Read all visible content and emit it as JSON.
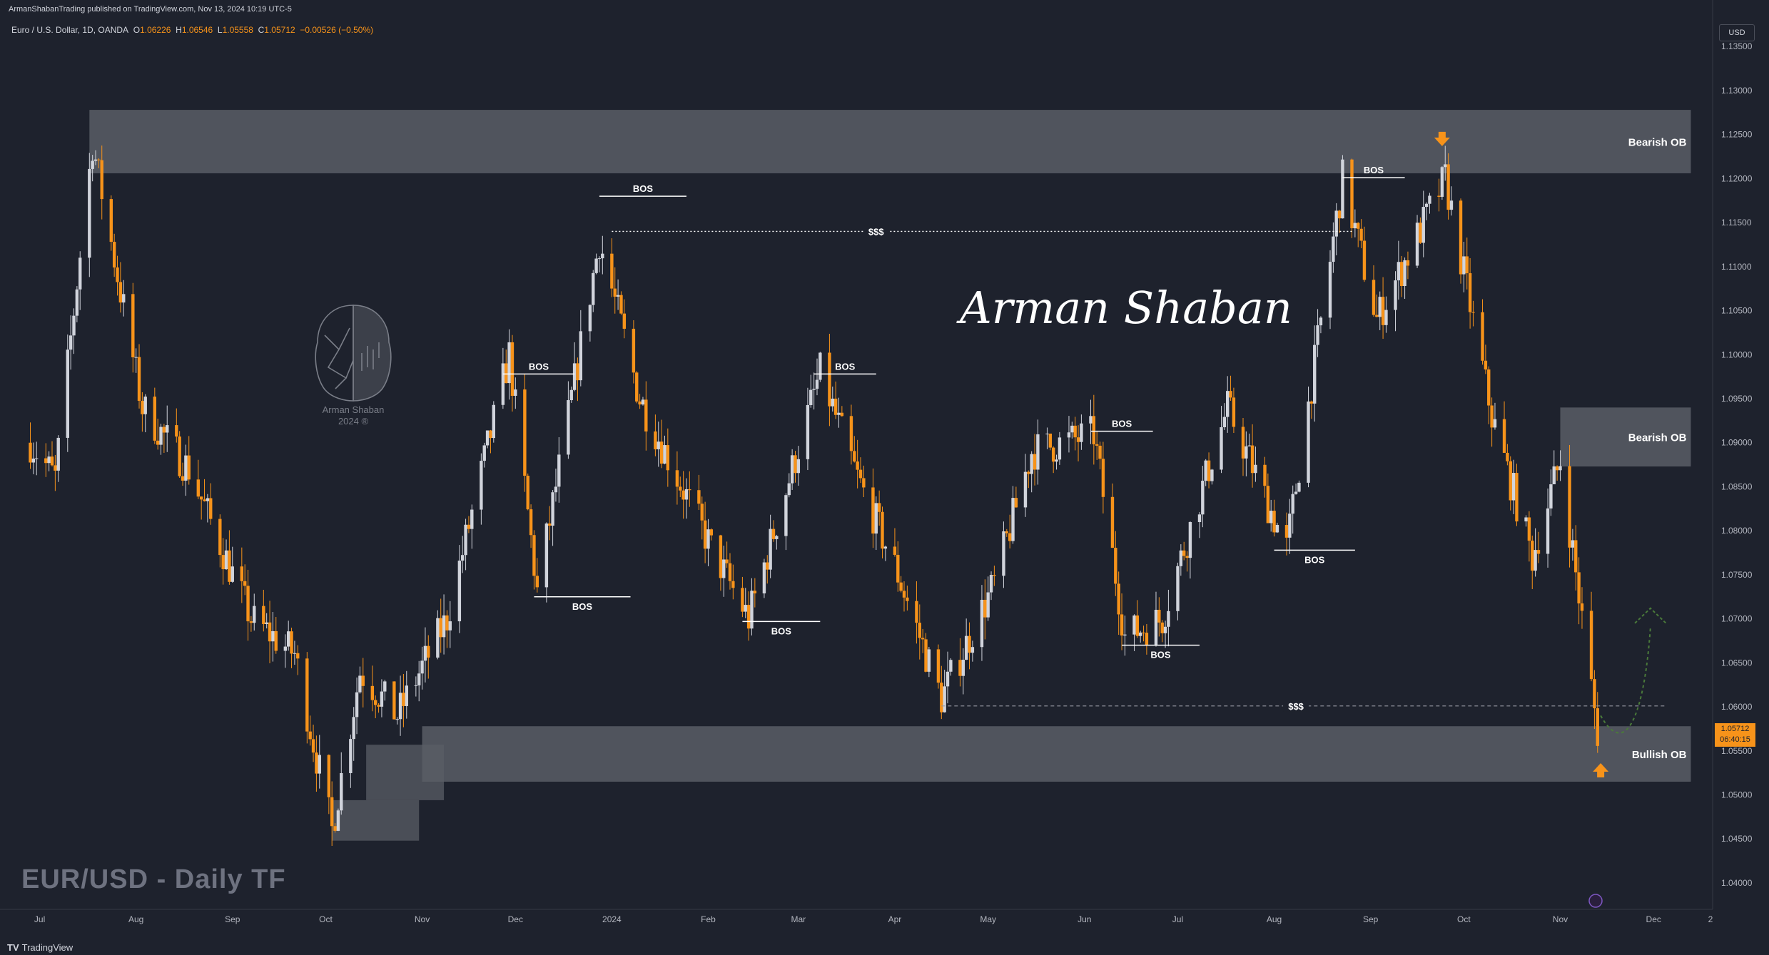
{
  "header": {
    "publisher": "ArmanShabanTrading published on TradingView.com, Nov 13, 2024 10:19 UTC-5"
  },
  "symbol_bar": {
    "name": "Euro / U.S. Dollar, 1D, OANDA",
    "o_label": "O",
    "o": "1.06226",
    "h_label": "H",
    "h": "1.06546",
    "l_label": "L",
    "l": "1.05558",
    "c_label": "C",
    "c": "1.05712",
    "change": "−0.00526 (−0.50%)"
  },
  "watermark": {
    "chart_title": "EUR/USD - Daily  TF",
    "signature": "Arman Shaban",
    "logo_line1": "Arman Shaban",
    "logo_line2": "2024 ®"
  },
  "price_axis": {
    "currency": "USD",
    "last_price": "1.05712",
    "countdown": "06:40:15"
  },
  "footer": {
    "brand": "TradingView"
  },
  "colors": {
    "background": "#1e222d",
    "bull_candle": "#d1d4dc",
    "bear_candle": "#f7931a",
    "zone": "#595d66",
    "accent": "#f7931a"
  },
  "chart_data": {
    "type": "candlestick",
    "symbol": "EUR/USD",
    "timeframe": "1D",
    "y_ticks": [
      "1.04000",
      "1.04500",
      "1.05000",
      "1.05500",
      "1.06000",
      "1.06500",
      "1.07000",
      "1.07500",
      "1.08000",
      "1.08500",
      "1.09000",
      "1.09500",
      "1.10000",
      "1.10500",
      "1.11000",
      "1.11500",
      "1.12000",
      "1.12500",
      "1.13000",
      "1.13500"
    ],
    "x_ticks": [
      "Jul",
      "Aug",
      "Sep",
      "Oct",
      "Nov",
      "Dec",
      "2024",
      "Feb",
      "Mar",
      "Apr",
      "May",
      "Jun",
      "Jul",
      "Aug",
      "Sep",
      "Oct",
      "Nov",
      "Dec",
      "2"
    ],
    "ylim": [
      1.037,
      1.1385
    ],
    "path_points": [
      {
        "date": "2023-06-28",
        "price": 1.09
      },
      {
        "date": "2023-07-06",
        "price": 1.086
      },
      {
        "date": "2023-07-18",
        "price": 1.124
      },
      {
        "date": "2023-08-03",
        "price": 1.094
      },
      {
        "date": "2023-08-18",
        "price": 1.087
      },
      {
        "date": "2023-09-07",
        "price": 1.07
      },
      {
        "date": "2023-09-21",
        "price": 1.066
      },
      {
        "date": "2023-10-03",
        "price": 1.046
      },
      {
        "date": "2023-10-12",
        "price": 1.064
      },
      {
        "date": "2023-10-24",
        "price": 1.059
      },
      {
        "date": "2023-11-09",
        "price": 1.07
      },
      {
        "date": "2023-11-29",
        "price": 1.1
      },
      {
        "date": "2023-12-08",
        "price": 1.073
      },
      {
        "date": "2023-12-28",
        "price": 1.113
      },
      {
        "date": "2024-01-10",
        "price": 1.095
      },
      {
        "date": "2024-02-02",
        "price": 1.078
      },
      {
        "date": "2024-02-14",
        "price": 1.07
      },
      {
        "date": "2024-03-08",
        "price": 1.098
      },
      {
        "date": "2024-03-20",
        "price": 1.086
      },
      {
        "date": "2024-04-01",
        "price": 1.076
      },
      {
        "date": "2024-04-16",
        "price": 1.061
      },
      {
        "date": "2024-05-03",
        "price": 1.074
      },
      {
        "date": "2024-05-15",
        "price": 1.089
      },
      {
        "date": "2024-06-04",
        "price": 1.091
      },
      {
        "date": "2024-06-14",
        "price": 1.068
      },
      {
        "date": "2024-06-26",
        "price": 1.07
      },
      {
        "date": "2024-07-17",
        "price": 1.094
      },
      {
        "date": "2024-08-05",
        "price": 1.078
      },
      {
        "date": "2024-08-23",
        "price": 1.12
      },
      {
        "date": "2024-09-03",
        "price": 1.104
      },
      {
        "date": "2024-09-25",
        "price": 1.12
      },
      {
        "date": "2024-10-10",
        "price": 1.093
      },
      {
        "date": "2024-10-23",
        "price": 1.077
      },
      {
        "date": "2024-11-01",
        "price": 1.088
      },
      {
        "date": "2024-11-13",
        "price": 1.0571
      }
    ],
    "zones": [
      {
        "label": "Bearish OB",
        "from": "2023-07-17",
        "to": "2024-12-13",
        "top": 1.1278,
        "bottom": 1.1206
      },
      {
        "label": "Bearish OB",
        "from": "2024-11-01",
        "to": "2024-12-13",
        "top": 1.094,
        "bottom": 1.0873
      },
      {
        "label": "Bullish OB",
        "from": "2023-11-01",
        "to": "2024-12-13",
        "top": 1.0578,
        "bottom": 1.0515
      },
      {
        "label": "",
        "from": "2023-10-14",
        "to": "2023-11-08",
        "top": 1.0557,
        "bottom": 1.0494
      },
      {
        "label": "",
        "from": "2023-10-03",
        "to": "2023-10-31",
        "top": 1.0494,
        "bottom": 1.0448
      }
    ],
    "levels": [
      {
        "label": "BOS",
        "price": 1.118,
        "from": "2023-12-28",
        "to": "2024-01-25"
      },
      {
        "label": "BOS",
        "price": 1.0978,
        "from": "2023-11-27",
        "to": "2023-12-20"
      },
      {
        "label": "BOS",
        "price": 1.0725,
        "from": "2023-12-07",
        "to": "2024-01-07"
      },
      {
        "label": "BOS",
        "price": 1.0978,
        "from": "2024-03-06",
        "to": "2024-03-26"
      },
      {
        "label": "BOS",
        "price": 1.0697,
        "from": "2024-02-12",
        "to": "2024-03-08"
      },
      {
        "label": "BOS",
        "price": 1.0913,
        "from": "2024-06-03",
        "to": "2024-06-23"
      },
      {
        "label": "BOS",
        "price": 1.067,
        "from": "2024-06-13",
        "to": "2024-07-08"
      },
      {
        "label": "BOS",
        "price": 1.0778,
        "from": "2024-08-01",
        "to": "2024-08-27"
      },
      {
        "label": "BOS",
        "price": 1.1201,
        "from": "2024-08-23",
        "to": "2024-09-12"
      },
      {
        "label": "$$$",
        "price": 1.114,
        "from": "2024-01-01",
        "to": "2024-08-26",
        "style": "dotted"
      },
      {
        "label": "$$$",
        "price": 1.0601,
        "from": "2024-04-16",
        "to": "2024-12-05",
        "style": "dashed"
      }
    ],
    "annotations": [
      "Bearish OB",
      "Bearish OB",
      "Bullish OB",
      "BOS",
      "$$$"
    ]
  }
}
